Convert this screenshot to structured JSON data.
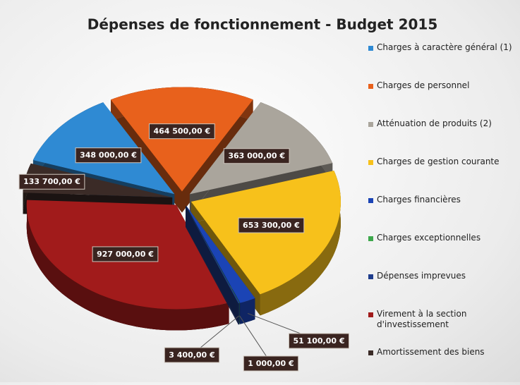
{
  "chart_data": {
    "type": "pie3d",
    "title": "Dépenses de fonctionnement - Budget 2015",
    "categories": [
      "Charges à caractère général (1)",
      "Charges de personnel",
      "Atténuation de produits (2)",
      "Charges de gestion courante",
      "Charges financières",
      "Charges exceptionnelles",
      "Dépenses imprevues",
      "Virement à la section d'investissement",
      "Amortissement des biens"
    ],
    "values": [
      348000,
      464500,
      363000,
      653300,
      51100,
      1000,
      3400,
      927000,
      133700
    ],
    "value_labels": [
      "348 000,00 €",
      "464 500,00 €",
      "363 000,00 €",
      "653 300,00 €",
      "51 100,00 €",
      "1 000,00 €",
      "3 400,00 €",
      "927 000,00 €",
      "133 700,00 €"
    ],
    "colors": [
      "#2f8ad3",
      "#e8611c",
      "#aaa59c",
      "#f7c11b",
      "#1b44b5",
      "#3da84c",
      "#1e3c8c",
      "#a11b1b",
      "#3b2b27"
    ],
    "legend": "right"
  }
}
